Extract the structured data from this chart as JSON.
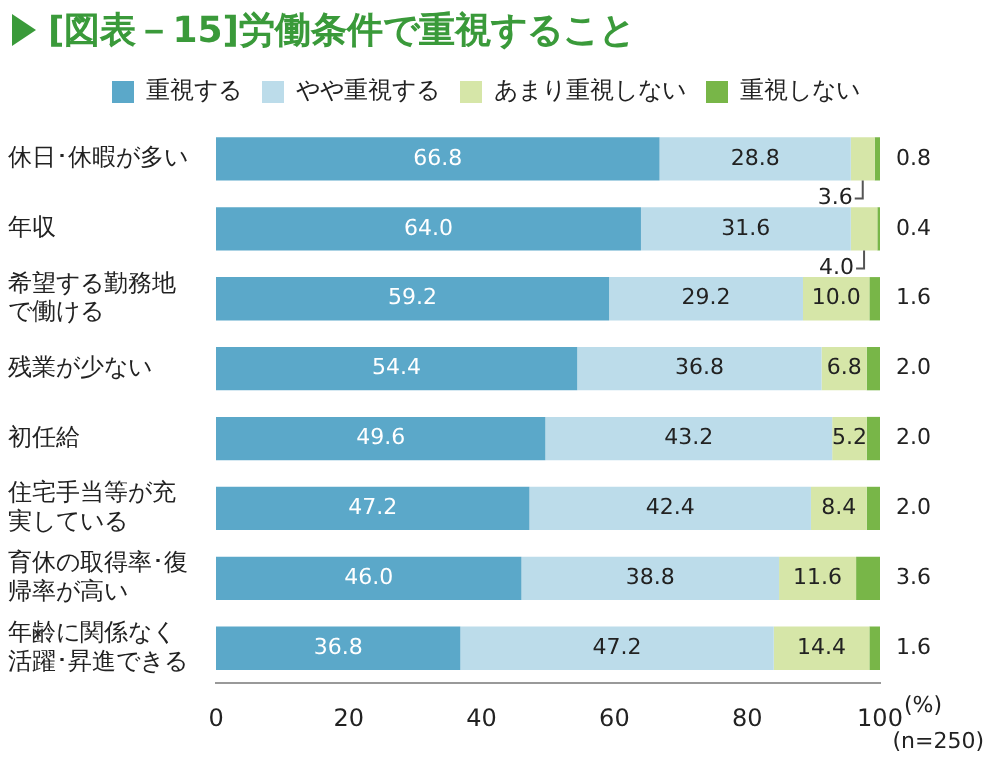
{
  "chart_data": {
    "type": "bar",
    "orientation": "horizontal",
    "stacked": true,
    "title": "[図表－15]労働条件で重視すること",
    "xlabel": "(%)",
    "annotations": [
      "(n=250)"
    ],
    "categories": [
      "休日･休暇が多い",
      "年収",
      "希望する勤務地で働ける",
      "残業が少ない",
      "初任給",
      "住宅手当等が充実している",
      "育休の取得率･復帰率が高い",
      "年齢に関係なく活躍･昇進できる"
    ],
    "series": [
      {
        "name": "重視する",
        "color": "#5ba8c9",
        "values": [
          66.8,
          64.0,
          59.2,
          54.4,
          49.6,
          47.2,
          46.0,
          36.8
        ],
        "value_labels": [
          "66.8",
          "64.0",
          "59.2",
          "54.4",
          "49.6",
          "47.2",
          "46.0",
          "36.8"
        ]
      },
      {
        "name": "やや重視する",
        "color": "#bcdcea",
        "values": [
          28.8,
          31.6,
          29.2,
          36.8,
          43.2,
          42.4,
          38.8,
          47.2
        ],
        "value_labels": [
          "28.8",
          "31.6",
          "29.2",
          "36.8",
          "43.2",
          "42.4",
          "38.8",
          "47.2"
        ]
      },
      {
        "name": "あまり重視しない",
        "color": "#d6e6a8",
        "values": [
          3.6,
          4.0,
          10.0,
          6.8,
          5.2,
          8.4,
          11.6,
          14.4
        ],
        "value_labels": [
          "3.6",
          "4.0",
          "10.0",
          "6.8",
          "5.2",
          "8.4",
          "11.6",
          "14.4"
        ]
      },
      {
        "name": "重視しない",
        "color": "#78b648",
        "values": [
          0.8,
          0.4,
          1.6,
          2.0,
          2.0,
          2.0,
          3.6,
          1.6
        ],
        "value_labels": [
          "0.8",
          "0.4",
          "1.6",
          "2.0",
          "2.0",
          "2.0",
          "3.6",
          "1.6"
        ]
      }
    ],
    "xlim": [
      0,
      100
    ],
    "xticks": [
      0,
      20,
      40,
      60,
      80,
      100
    ],
    "grid": false,
    "legend": "top"
  }
}
